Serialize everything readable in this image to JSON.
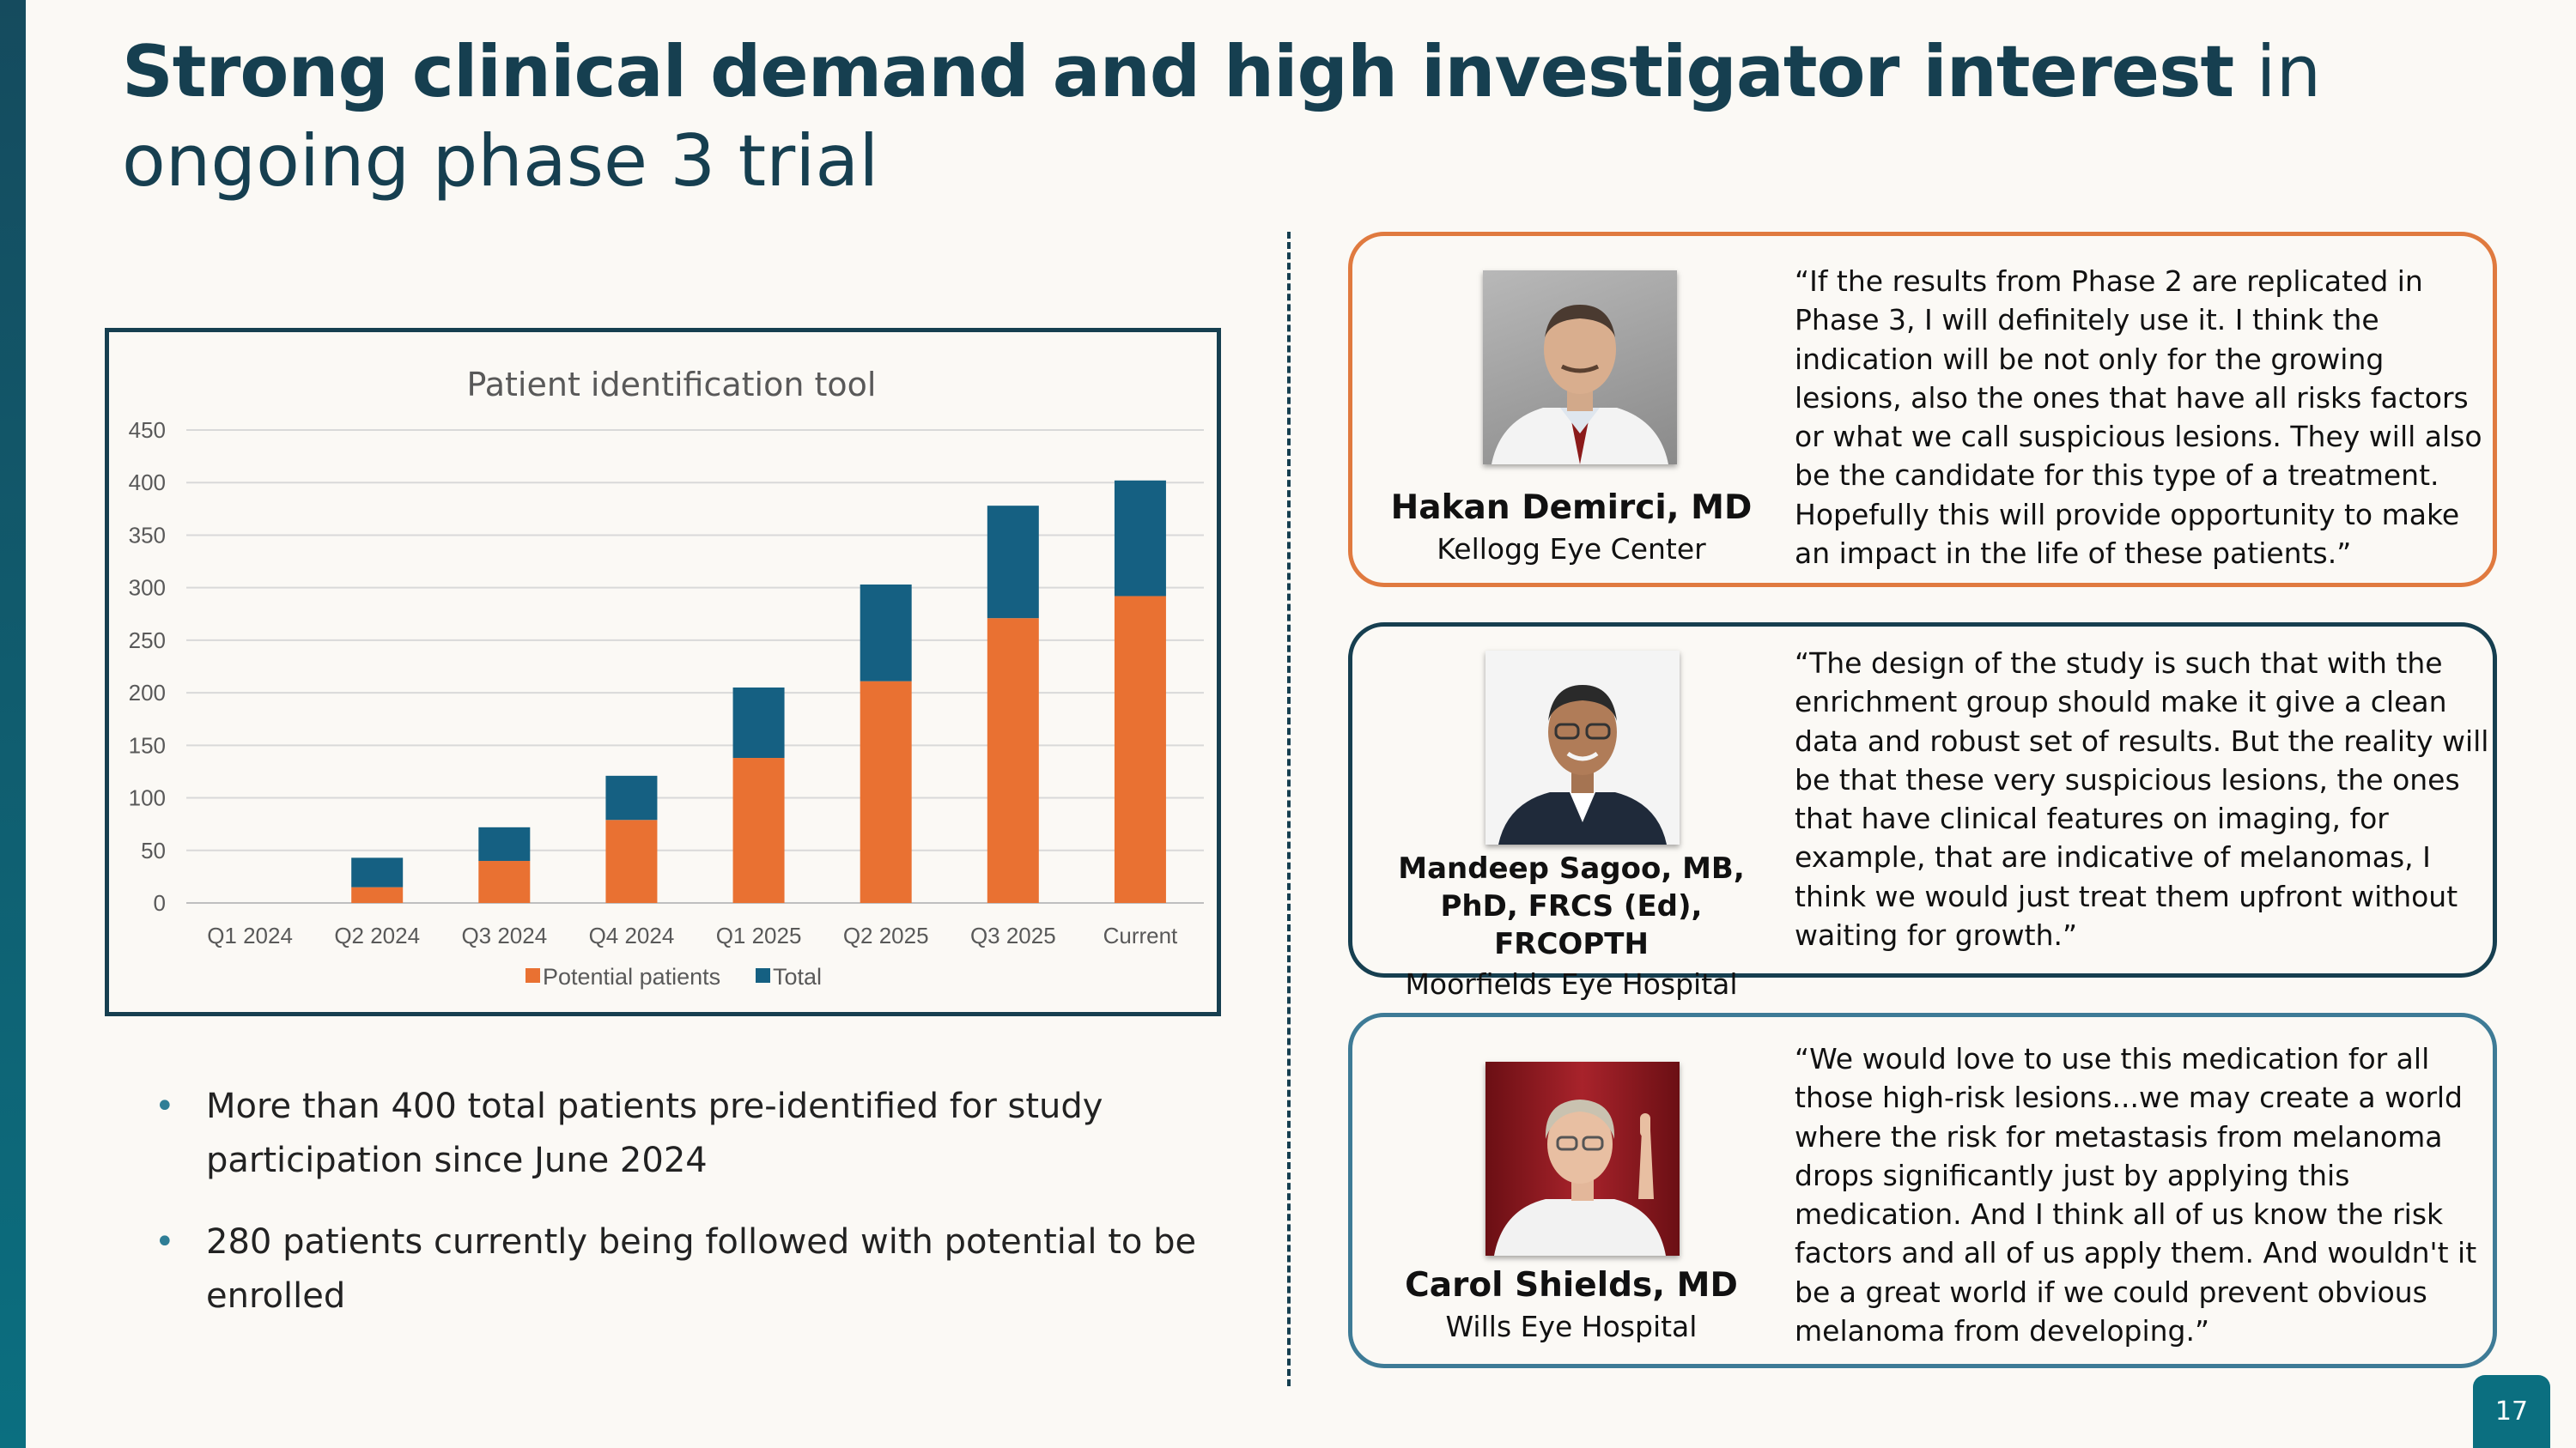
{
  "slide": {
    "title_bold": "Strong clinical demand and high investigator interest",
    "title_rest": " in ongoing phase 3 trial",
    "page_number": "17",
    "colors": {
      "accent_teal": "#0b6f80",
      "dark_navy": "#163f50",
      "orange": "#e97132",
      "blue": "#156082"
    }
  },
  "chart_data": {
    "type": "bar",
    "stacked": true,
    "title": "Patient identification tool",
    "categories": [
      "Q1 2024",
      "Q2 2024",
      "Q3 2024",
      "Q4 2024",
      "Q1 2025",
      "Q2 2025",
      "Q3 2025",
      "Current"
    ],
    "series": [
      {
        "name": "Potential patients",
        "color": "#e97132",
        "values": [
          0,
          15,
          40,
          79,
          138,
          211,
          271,
          292
        ]
      },
      {
        "name": "Total",
        "color": "#156082",
        "values": [
          0,
          28,
          32,
          42,
          67,
          92,
          107,
          110
        ]
      }
    ],
    "ylim": [
      0,
      450
    ],
    "yticks": [
      "0",
      "50",
      "100",
      "150",
      "200",
      "250",
      "300",
      "350",
      "400",
      "450"
    ],
    "xlabel": "",
    "ylabel": "",
    "legend": "bottom",
    "grid": true
  },
  "bullets": [
    "More than 400 total patients pre-identified for study participation since June 2024",
    "280 patients currently being followed with potential to be enrolled"
  ],
  "quotes": [
    {
      "name": "Hakan Demirci, MD",
      "org": "Kellogg Eye Center",
      "text": "“If the results from Phase 2 are replicated in Phase 3, I will definitely use it. I think the indication will be not only for the growing lesions, also the ones that have all risks factors or what we call suspicious lesions. They will also be the candidate for this type of a treatment. Hopefully this will provide opportunity to make an impact in the life of these patients.”"
    },
    {
      "name": "Mandeep Sagoo, MB, PhD, FRCS (Ed), FRCOPTH",
      "org": "Moorfields Eye Hospital",
      "text": "“The design of the study is such that with the enrichment group should make it give a clean data and robust set of results. But the reality will be that these very suspicious lesions, the ones that have clinical features on imaging, for example, that are indicative of melanomas, I think we would just treat them upfront without waiting for growth.”"
    },
    {
      "name": "Carol Shields, MD",
      "org": "Wills Eye Hospital",
      "text": "“We would love to use this medication for all those high-risk lesions...we may create a world where the risk for metastasis from melanoma drops significantly just by applying this medication. And I think all of us know the risk factors and all of us apply them. And wouldn't it be a great world if we could prevent obvious melanoma from developing.”"
    }
  ]
}
